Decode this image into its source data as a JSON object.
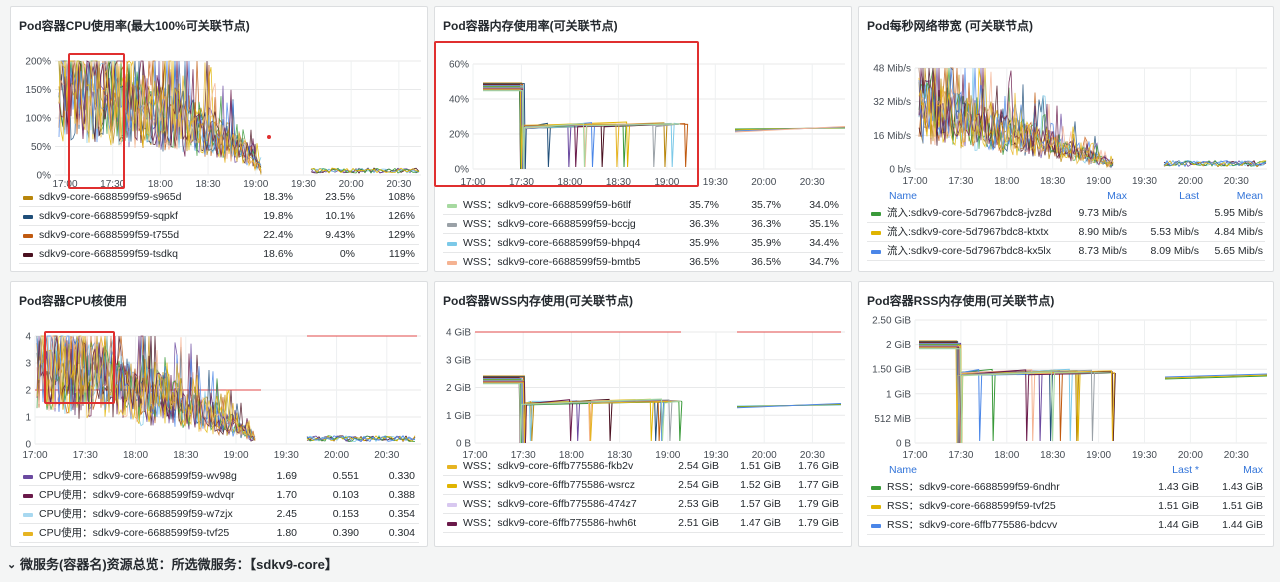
{
  "colors": {
    "gold": "#b8860b",
    "navy": "#1f4e79",
    "orange": "#c05a10",
    "maroon": "#4a1020",
    "green_light": "#a6d9a0",
    "gray": "#9aa1a7",
    "sky": "#7cc9e8",
    "peach": "#f5b392",
    "green": "#3a9a3a",
    "yellow": "#e0b400",
    "blue": "#4a86e8",
    "purple": "#6b4aa0",
    "plum": "#6a1a4a",
    "lightblue": "#a8d8f0",
    "amber": "#e6b422",
    "lavender": "#d8c8f0",
    "redline": "#e04a4a",
    "highlight": "#e02f2f"
  },
  "panels": {
    "p1": {
      "title": "Pod容器CPU使用率(最大100%可关联节点)",
      "yticks": [
        "200%",
        "150%",
        "100%",
        "50%",
        "0%"
      ],
      "xticks": [
        "17:00",
        "17:30",
        "18:00",
        "18:30",
        "19:00",
        "19:30",
        "20:00",
        "20:30"
      ],
      "rows": [
        {
          "name": "sdkv9-core-6688599f59-s965d",
          "c1": "18.3%",
          "c2": "23.5%",
          "c3": "108%",
          "color": "gold"
        },
        {
          "name": "sdkv9-core-6688599f59-sqpkf",
          "c1": "19.8%",
          "c2": "10.1%",
          "c3": "126%",
          "color": "navy"
        },
        {
          "name": "sdkv9-core-6688599f59-t755d",
          "c1": "22.4%",
          "c2": "9.43%",
          "c3": "129%",
          "color": "orange"
        },
        {
          "name": "sdkv9-core-6688599f59-tsdkq",
          "c1": "18.6%",
          "c2": "0%",
          "c3": "119%",
          "color": "maroon"
        }
      ]
    },
    "p2": {
      "title": "Pod容器内存使用率(可关联节点)",
      "yticks": [
        "60%",
        "40%",
        "20%",
        "0%"
      ],
      "xticks": [
        "17:00",
        "17:30",
        "18:00",
        "18:30",
        "19:00",
        "19:30",
        "20:00",
        "20:30"
      ],
      "rows": [
        {
          "name": "WSS：sdkv9-core-6688599f59-b6tlf",
          "c1": "35.7%",
          "c2": "35.7%",
          "c3": "34.0%",
          "color": "green_light"
        },
        {
          "name": "WSS：sdkv9-core-6688599f59-bccjg",
          "c1": "36.3%",
          "c2": "36.3%",
          "c3": "35.1%",
          "color": "gray"
        },
        {
          "name": "WSS：sdkv9-core-6688599f59-bhpq4",
          "c1": "35.9%",
          "c2": "35.9%",
          "c3": "34.4%",
          "color": "sky"
        },
        {
          "name": "WSS：sdkv9-core-6688599f59-bmtb5",
          "c1": "36.5%",
          "c2": "36.5%",
          "c3": "34.7%",
          "color": "peach"
        }
      ]
    },
    "p3": {
      "title": "Pod每秒网络带宽 (可关联节点)",
      "yticks": [
        "48 Mib/s",
        "32 Mib/s",
        "16 Mib/s",
        "0 b/s"
      ],
      "xticks": [
        "17:00",
        "17:30",
        "18:00",
        "18:30",
        "19:00",
        "19:30",
        "20:00",
        "20:30"
      ],
      "header": {
        "name": "Name",
        "c1": "Max",
        "c2": "Last",
        "c3": "Mean"
      },
      "rows": [
        {
          "name": "流入:sdkv9-core-5d7967bdc8-jvz8d",
          "c1": "9.73 Mib/s",
          "c2": "",
          "c3": "5.95 Mib/s",
          "color": "green"
        },
        {
          "name": "流入:sdkv9-core-5d7967bdc8-ktxtx",
          "c1": "8.90 Mib/s",
          "c2": "5.53 Mib/s",
          "c3": "4.84 Mib/s",
          "color": "yellow"
        },
        {
          "name": "流入:sdkv9-core-5d7967bdc8-kx5lx",
          "c1": "8.73 Mib/s",
          "c2": "8.09 Mib/s",
          "c3": "5.65 Mib/s",
          "color": "blue"
        }
      ]
    },
    "p4": {
      "title": "Pod容器CPU核使用",
      "yticks": [
        "4",
        "3",
        "2",
        "1",
        "0"
      ],
      "xticks": [
        "17:00",
        "17:30",
        "18:00",
        "18:30",
        "19:00",
        "19:30",
        "20:00",
        "20:30"
      ],
      "rows": [
        {
          "name": "CPU使用：sdkv9-core-6688599f59-wv98g",
          "c1": "1.69",
          "c2": "0.551",
          "c3": "0.330",
          "color": "purple"
        },
        {
          "name": "CPU使用：sdkv9-core-6688599f59-wdvqr",
          "c1": "1.70",
          "c2": "0.103",
          "c3": "0.388",
          "color": "plum"
        },
        {
          "name": "CPU使用：sdkv9-core-6688599f59-w7zjx",
          "c1": "2.45",
          "c2": "0.153",
          "c3": "0.354",
          "color": "lightblue"
        },
        {
          "name": "CPU使用：sdkv9-core-6688599f59-tvf25",
          "c1": "1.80",
          "c2": "0.390",
          "c3": "0.304",
          "color": "amber"
        }
      ]
    },
    "p5": {
      "title": "Pod容器WSS内存使用(可关联节点)",
      "yticks": [
        "4 GiB",
        "3 GiB",
        "2 GiB",
        "1 GiB",
        "0 B"
      ],
      "xticks": [
        "17:00",
        "17:30",
        "18:00",
        "18:30",
        "19:00",
        "19:30",
        "20:00",
        "20:30"
      ],
      "rows": [
        {
          "name": "WSS：sdkv9-core-6ffb775586-fkb2v",
          "c1": "2.54 GiB",
          "c2": "1.51 GiB",
          "c3": "1.76 GiB",
          "color": "amber"
        },
        {
          "name": "WSS：sdkv9-core-6ffb775586-wsrcz",
          "c1": "2.54 GiB",
          "c2": "1.52 GiB",
          "c3": "1.77 GiB",
          "color": "yellow"
        },
        {
          "name": "WSS：sdkv9-core-6ffb775586-474z7",
          "c1": "2.53 GiB",
          "c2": "1.57 GiB",
          "c3": "1.79 GiB",
          "color": "lavender"
        },
        {
          "name": "WSS：sdkv9-core-6ffb775586-hwh6t",
          "c1": "2.51 GiB",
          "c2": "1.47 GiB",
          "c3": "1.79 GiB",
          "color": "plum"
        }
      ]
    },
    "p6": {
      "title": "Pod容器RSS内存使用(可关联节点)",
      "yticks": [
        "2.50 GiB",
        "2 GiB",
        "1.50 GiB",
        "1 GiB",
        "512 MiB",
        "0 B"
      ],
      "xticks": [
        "17:00",
        "17:30",
        "18:00",
        "18:30",
        "19:00",
        "19:30",
        "20:00",
        "20:30"
      ],
      "header": {
        "name": "Name",
        "c1": "Last *",
        "c2": "Max"
      },
      "rows": [
        {
          "name": "RSS：sdkv9-core-6688599f59-6ndhr",
          "c1": "1.43 GiB",
          "c2": "1.43 GiB",
          "color": "green"
        },
        {
          "name": "RSS：sdkv9-core-6688599f59-tvf25",
          "c1": "1.51 GiB",
          "c2": "1.51 GiB",
          "color": "yellow"
        },
        {
          "name": "RSS：sdkv9-core-6ffb775586-bdcvv",
          "c1": "1.44 GiB",
          "c2": "1.44 GiB",
          "color": "blue"
        }
      ]
    }
  },
  "footer": {
    "label": "微服务(容器名)资源总览：所选微服务：【sdkv9-core】"
  }
}
